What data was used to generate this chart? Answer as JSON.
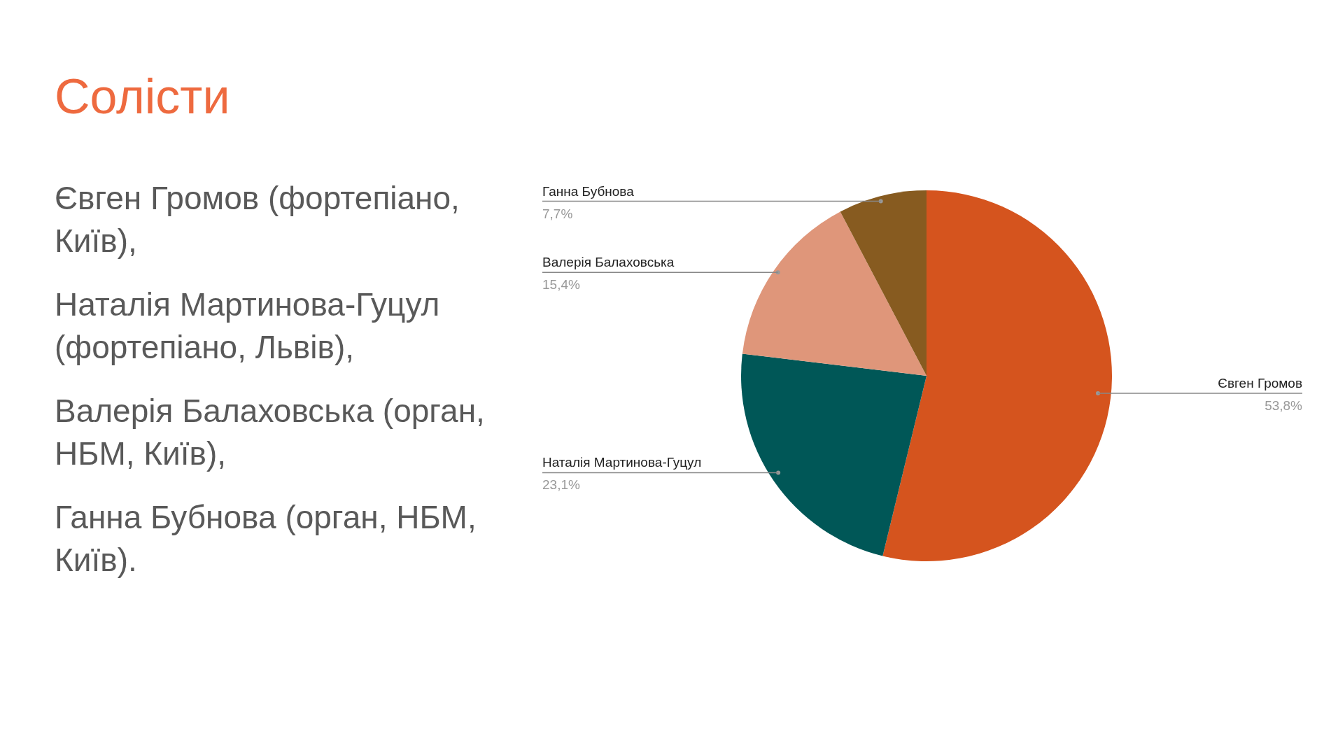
{
  "chart_data": {
    "type": "pie",
    "title": "Солісти",
    "categories": [
      "Євген Громов",
      "Наталія Мартинова-Гуцул",
      "Валерія Балаховська",
      "Ганна Бубнова"
    ],
    "values": [
      53.8,
      23.1,
      15.4,
      7.7
    ],
    "value_labels": [
      "53,8%",
      "23,1%",
      "15,4%",
      "7,7%"
    ],
    "colors": [
      "#d5541e",
      "#005757",
      "#df967a",
      "#875b20"
    ],
    "annotations": [
      "Євген Громов (фортепіано, Київ),",
      "Наталія Мартинова-Гуцул (фортепіано, Львів),",
      "Валерія Балаховська (орган, НБМ, Київ),",
      "Ганна Бубнова (орган, НБМ, Київ)."
    ],
    "legend": false
  }
}
